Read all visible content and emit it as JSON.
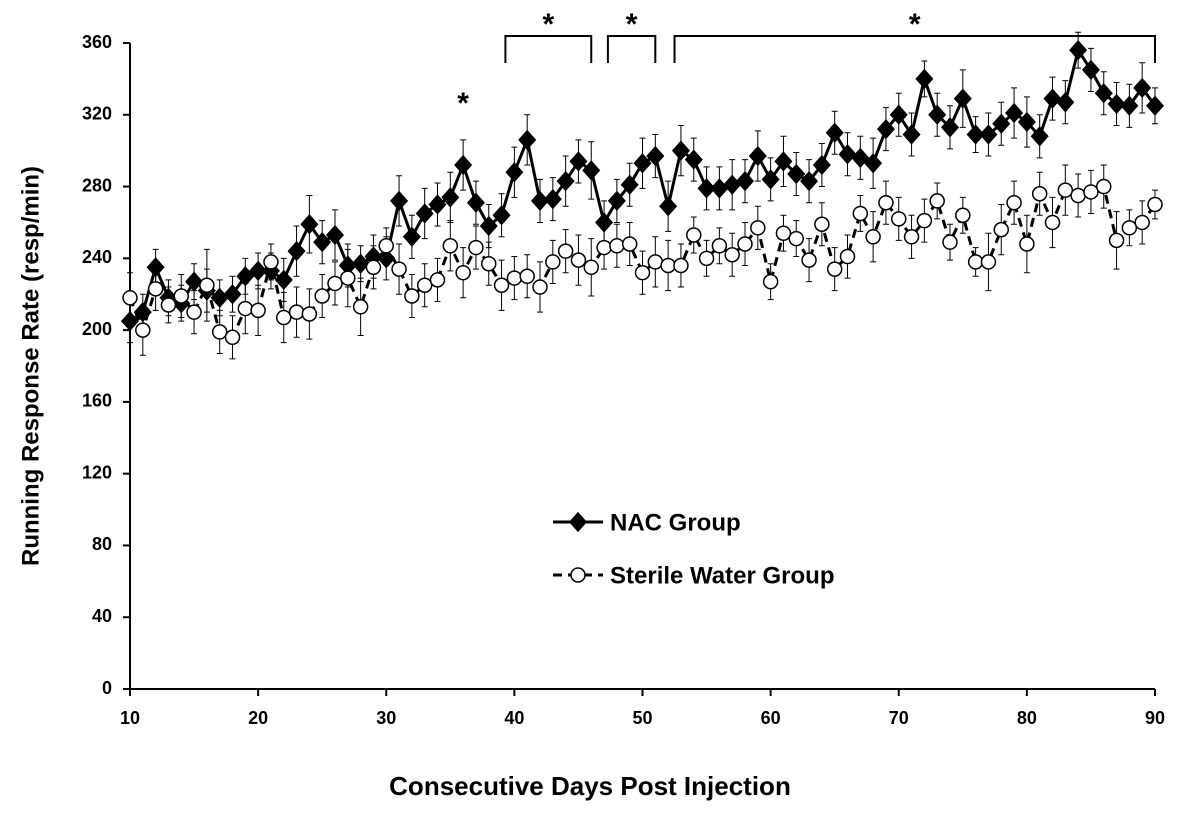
{
  "chart_data": {
    "type": "line",
    "xlabel": "Consecutive  Days Post Injection",
    "ylabel": "Running Response Rate (resp/min)",
    "x": [
      10,
      11,
      12,
      13,
      14,
      15,
      16,
      17,
      18,
      19,
      20,
      21,
      22,
      23,
      24,
      25,
      26,
      27,
      28,
      29,
      30,
      31,
      32,
      33,
      34,
      35,
      36,
      37,
      38,
      39,
      40,
      41,
      42,
      43,
      44,
      45,
      46,
      47,
      48,
      49,
      50,
      51,
      52,
      53,
      54,
      55,
      56,
      57,
      58,
      59,
      60,
      61,
      62,
      63,
      64,
      65,
      66,
      67,
      68,
      69,
      70,
      71,
      72,
      73,
      74,
      75,
      76,
      77,
      78,
      79,
      80,
      81,
      82,
      83,
      84,
      85,
      86,
      87,
      88,
      89,
      90
    ],
    "series": [
      {
        "name": "NAC Group",
        "color": "#000000",
        "marker": "diamond",
        "dashed": false,
        "values": [
          205,
          210,
          235,
          218,
          215,
          227,
          222,
          218,
          220,
          230,
          233,
          233,
          228,
          244,
          259,
          249,
          253,
          236,
          237,
          241,
          240,
          272,
          252,
          265,
          270,
          274,
          292,
          271,
          258,
          264,
          288,
          306,
          272,
          273,
          283,
          294,
          289,
          260,
          272,
          281,
          293,
          297,
          269,
          300,
          295,
          279,
          279,
          281,
          283,
          297,
          284,
          294,
          287,
          283,
          292,
          310,
          298,
          296,
          293,
          312,
          320,
          309,
          340,
          320,
          313,
          329,
          309,
          309,
          315,
          321,
          316,
          308,
          329,
          327,
          356,
          345,
          332,
          326,
          325,
          335,
          325
        ],
        "errors": [
          12,
          10,
          10,
          10,
          10,
          10,
          12,
          10,
          10,
          10,
          10,
          10,
          12,
          14,
          16,
          12,
          14,
          12,
          10,
          12,
          12,
          14,
          12,
          14,
          12,
          14,
          14,
          12,
          12,
          12,
          14,
          14,
          12,
          12,
          14,
          12,
          16,
          12,
          12,
          12,
          14,
          12,
          14,
          14,
          12,
          12,
          12,
          14,
          12,
          14,
          12,
          14,
          12,
          12,
          12,
          12,
          12,
          12,
          14,
          12,
          12,
          12,
          10,
          12,
          12,
          16,
          10,
          12,
          12,
          14,
          14,
          12,
          12,
          12,
          10,
          12,
          12,
          12,
          12,
          14,
          10
        ]
      },
      {
        "name": "Sterile Water Group",
        "color": "#000000",
        "marker": "circle",
        "dashed": true,
        "values": [
          218,
          200,
          223,
          214,
          219,
          210,
          225,
          199,
          196,
          212,
          211,
          238,
          207,
          210,
          209,
          219,
          226,
          229,
          213,
          235,
          247,
          234,
          219,
          225,
          228,
          247,
          232,
          246,
          237,
          225,
          229,
          230,
          224,
          238,
          244,
          239,
          235,
          246,
          247,
          248,
          232,
          238,
          236,
          236,
          253,
          240,
          247,
          242,
          248,
          257,
          227,
          254,
          251,
          239,
          259,
          234,
          241,
          265,
          252,
          271,
          262,
          252,
          261,
          272,
          249,
          264,
          238,
          238,
          256,
          271,
          248,
          276,
          260,
          278,
          275,
          277,
          280,
          250,
          257,
          260,
          270
        ],
        "errors": [
          14,
          14,
          12,
          10,
          12,
          12,
          20,
          12,
          12,
          14,
          14,
          10,
          14,
          14,
          14,
          12,
          12,
          16,
          16,
          12,
          10,
          14,
          12,
          12,
          12,
          14,
          14,
          12,
          12,
          14,
          12,
          12,
          14,
          12,
          12,
          14,
          16,
          12,
          12,
          12,
          12,
          14,
          14,
          12,
          10,
          10,
          10,
          12,
          12,
          12,
          10,
          10,
          10,
          12,
          12,
          12,
          12,
          10,
          14,
          12,
          12,
          12,
          12,
          10,
          10,
          10,
          8,
          16,
          14,
          12,
          16,
          12,
          14,
          14,
          12,
          12,
          12,
          16,
          10,
          12,
          8
        ]
      }
    ],
    "xlim": [
      10,
      90
    ],
    "xticks": [
      10,
      20,
      30,
      40,
      50,
      60,
      70,
      80,
      90
    ],
    "ylim": [
      0,
      360
    ],
    "yticks": [
      0,
      40,
      80,
      120,
      160,
      200,
      240,
      280,
      320,
      360
    ],
    "markers": [
      {
        "label": "*",
        "x": 36,
        "y": 300
      }
    ],
    "brackets": [
      {
        "label": "*",
        "start": 39.3,
        "end": 46
      },
      {
        "label": "*",
        "start": 47.3,
        "end": 51
      },
      {
        "label": "*",
        "start": 52.5,
        "end": 90
      }
    ]
  }
}
